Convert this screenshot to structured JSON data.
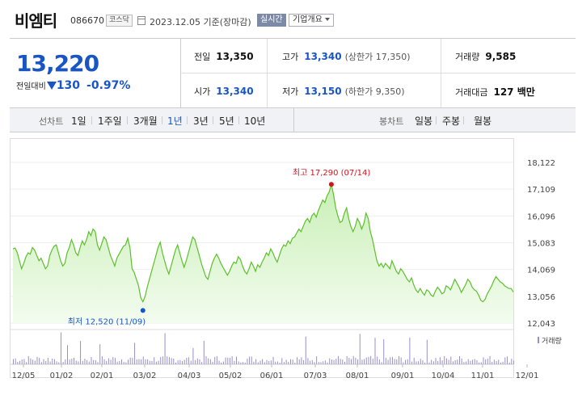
{
  "header": {
    "name": "비엠티",
    "code": "086670",
    "market": "코스닥",
    "date": "2023.12.05 기준(장마감)",
    "live_label": "실시간",
    "company_button": "기업개요"
  },
  "quote": {
    "price": "13,220",
    "change_label": "전일대비",
    "change_abs": "130",
    "change_pct": "-0.97%",
    "prev": {
      "label": "전일",
      "value": "13,350"
    },
    "high": {
      "label": "고가",
      "value": "13,340",
      "limit": "(상한가 17,350)"
    },
    "volume": {
      "label": "거래량",
      "value": "9,585"
    },
    "open": {
      "label": "시가",
      "value": "13,340"
    },
    "low": {
      "label": "저가",
      "value": "13,150",
      "limit": "(하한가 9,350)"
    },
    "amount": {
      "label": "거래대금",
      "value": "127 백만"
    }
  },
  "period": {
    "line_label": "선차트",
    "line_options": [
      "1일",
      "1주일",
      "3개월",
      "1년",
      "3년",
      "5년",
      "10년"
    ],
    "active": "1년",
    "candle_label": "봉차트",
    "candle_options": [
      "일봉",
      "주봉",
      "월봉"
    ]
  },
  "colors": {
    "line": "#5cc02c",
    "fill": "#dff5d3",
    "price_up": "#d5121b",
    "price_down": "#1a55c4",
    "volume_bar": "#9a8fc9"
  },
  "chart_data": {
    "type": "area",
    "y_ticks": [
      "18,122",
      "17,109",
      "16,096",
      "15,083",
      "14,069",
      "13,056",
      "12,043"
    ],
    "ylim": [
      12043,
      18122
    ],
    "x_ticks": [
      "12/05",
      "01/02",
      "02/01",
      "03/02",
      "04/03",
      "05/02",
      "06/01",
      "07/03",
      "08/01",
      "09/01",
      "10/04",
      "11/01",
      "12/01"
    ],
    "high_label": "최고 17,290 (07/14)",
    "low_label": "최저 12,520 (11/09)",
    "high": 17290,
    "low": 12520,
    "volume_label": "거래량",
    "values": [
      14850,
      14880,
      14700,
      14400,
      14100,
      14300,
      14550,
      14700,
      14650,
      14900,
      14800,
      14600,
      14400,
      14500,
      14300,
      14100,
      14200,
      14600,
      14800,
      14950,
      15000,
      14700,
      14400,
      14200,
      14300,
      14700,
      14900,
      15200,
      15000,
      14700,
      14600,
      14900,
      15150,
      15000,
      15200,
      15500,
      15350,
      15600,
      15500,
      15000,
      14800,
      15050,
      15300,
      15200,
      14900,
      14600,
      14400,
      14200,
      14500,
      14650,
      14800,
      14950,
      15000,
      15250,
      14900,
      14100,
      13950,
      13700,
      13450,
      13000,
      12850,
      13050,
      13400,
      13700,
      14000,
      14300,
      14600,
      14900,
      15100,
      14700,
      14400,
      14100,
      13900,
      14200,
      14500,
      14800,
      15000,
      14700,
      14400,
      14150,
      14400,
      14700,
      15000,
      15300,
      15200,
      14900,
      14600,
      14300,
      14050,
      13800,
      13700,
      14000,
      14300,
      14500,
      14650,
      14500,
      14300,
      14150,
      14000,
      13850,
      14000,
      14200,
      14350,
      14300,
      14550,
      14450,
      14200,
      14000,
      13900,
      14100,
      14350,
      14200,
      14000,
      14250,
      14150,
      14350,
      14500,
      14700,
      14600,
      14850,
      14700,
      14500,
      14350,
      14600,
      14850,
      15000,
      14950,
      15150,
      15050,
      15250,
      15300,
      15450,
      15600,
      15500,
      15700,
      15900,
      16000,
      15850,
      16100,
      16200,
      16050,
      16300,
      16500,
      16700,
      16600,
      16850,
      17000,
      17290,
      16900,
      16400,
      16100,
      15850,
      15900,
      16200,
      16400,
      16000,
      15700,
      15500,
      15700,
      16000,
      15850,
      15600,
      15800,
      16200,
      16000,
      15500,
      15200,
      14800,
      14400,
      14200,
      14300,
      14150,
      14300,
      14200,
      14100,
      14400,
      14200,
      14000,
      13900,
      14100,
      14000,
      13850,
      13700,
      13600,
      13750,
      13500,
      13300,
      13200,
      13350,
      13200,
      13100,
      13300,
      13250,
      13100,
      13050,
      13250,
      13400,
      13300,
      13150,
      13200,
      13450,
      13400,
      13300,
      13500,
      13700,
      13550,
      13400,
      13200,
      13350,
      13500,
      13700,
      13600,
      13400,
      13300,
      13250,
      13100,
      12900,
      12850,
      12950,
      13150,
      13300,
      13450,
      13650,
      13800,
      13700,
      13600,
      13550,
      13450,
      13400,
      13350,
      13350,
      13220
    ]
  }
}
